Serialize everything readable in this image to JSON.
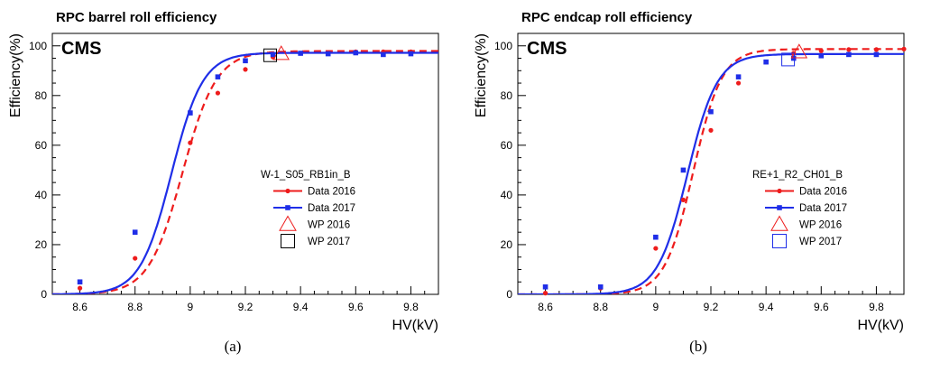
{
  "chart_data": [
    {
      "type": "line",
      "title": "RPC barrel roll efficiency",
      "experiment_label": "CMS",
      "xlabel": "HV(kV)",
      "ylabel": "Efficiency(%)",
      "xlim": [
        8.5,
        9.9
      ],
      "ylim": [
        0,
        105
      ],
      "xticks": [
        8.6,
        8.8,
        9.0,
        9.2,
        9.4,
        9.6,
        9.8
      ],
      "xtick_labels": [
        "8.6",
        "8.8",
        "9",
        "9.2",
        "9.4",
        "9.6",
        "9.8"
      ],
      "yticks": [
        0,
        20,
        40,
        60,
        80,
        100
      ],
      "ytick_labels": [
        "0",
        "20",
        "40",
        "60",
        "80",
        "100"
      ],
      "legend": {
        "placement": "right-middle",
        "header": "W-1_S05_RB1in_B"
      },
      "caption": "(a)",
      "series": [
        {
          "name": "Data 2016",
          "color": "#ee1c1c",
          "line_style": "dashed",
          "marker": "circle",
          "x": [
            8.6,
            8.8,
            9.0,
            9.1,
            9.2,
            9.3,
            9.4,
            9.5,
            9.6,
            9.7,
            9.8
          ],
          "y": [
            2.5,
            14.5,
            61,
            81,
            90.5,
            95.5,
            97,
            97.3,
            97.6,
            97.6,
            97.6
          ],
          "fit": {
            "plateau": 97.9,
            "slope": 16.3,
            "hv50": 8.972
          }
        },
        {
          "name": "Data 2017",
          "color": "#1f2ee8",
          "line_style": "solid",
          "marker": "square",
          "x": [
            8.6,
            8.8,
            9.0,
            9.1,
            9.2,
            9.3,
            9.4,
            9.5,
            9.6,
            9.7,
            9.8
          ],
          "y": [
            5,
            25,
            73,
            87.5,
            94,
            96.5,
            97,
            96.8,
            97.2,
            96.5,
            96.8
          ],
          "fit": {
            "plateau": 97.2,
            "slope": 17.6,
            "hv50": 8.932
          }
        }
      ],
      "working_points": [
        {
          "name": "WP 2016",
          "x": 9.33,
          "y": 96.8,
          "marker": "triangle",
          "color": "#ee1c1c"
        },
        {
          "name": "WP 2017",
          "x": 9.29,
          "y": 96.2,
          "marker": "square-open",
          "color": "#000000"
        }
      ]
    },
    {
      "type": "line",
      "title": "RPC endcap roll efficiency",
      "experiment_label": "CMS",
      "xlabel": "HV(kV)",
      "ylabel": "Efficiency(%)",
      "xlim": [
        8.5,
        9.9
      ],
      "ylim": [
        0,
        105
      ],
      "xticks": [
        8.6,
        8.8,
        9.0,
        9.2,
        9.4,
        9.6,
        9.8
      ],
      "xtick_labels": [
        "8.6",
        "8.8",
        "9",
        "9.2",
        "9.4",
        "9.6",
        "9.8"
      ],
      "yticks": [
        0,
        20,
        40,
        60,
        80,
        100
      ],
      "ytick_labels": [
        "0",
        "20",
        "40",
        "60",
        "80",
        "100"
      ],
      "legend": {
        "placement": "right-middle",
        "header": "RE+1_R2_CH01_B"
      },
      "caption": "(b)",
      "series": [
        {
          "name": "Data 2016",
          "color": "#ee1c1c",
          "line_style": "dashed",
          "marker": "circle",
          "x": [
            8.6,
            8.8,
            9.0,
            9.1,
            9.2,
            9.3,
            9.4,
            9.5,
            9.6,
            9.7,
            9.8,
            9.9
          ],
          "y": [
            0.5,
            2.5,
            18.5,
            38,
            66,
            85,
            93.5,
            97,
            98,
            98.5,
            98.5,
            98.7
          ],
          "fit": {
            "plateau": 98.7,
            "slope": 19.3,
            "hv50": 9.136
          }
        },
        {
          "name": "Data 2017",
          "color": "#1f2ee8",
          "line_style": "solid",
          "marker": "square",
          "x": [
            8.6,
            8.8,
            9.0,
            9.1,
            9.2,
            9.3,
            9.4,
            9.5,
            9.6,
            9.7,
            9.8
          ],
          "y": [
            3,
            3,
            23,
            50,
            73.5,
            87.5,
            93.5,
            95,
            96,
            96.5,
            96.5
          ],
          "fit": {
            "plateau": 96.7,
            "slope": 18.5,
            "hv50": 9.115
          }
        }
      ],
      "working_points": [
        {
          "name": "WP 2016",
          "x": 9.52,
          "y": 97.5,
          "marker": "triangle",
          "color": "#ee1c1c"
        },
        {
          "name": "WP 2017",
          "x": 9.48,
          "y": 94.5,
          "marker": "square-open",
          "color": "#1f2ee8"
        }
      ]
    }
  ]
}
